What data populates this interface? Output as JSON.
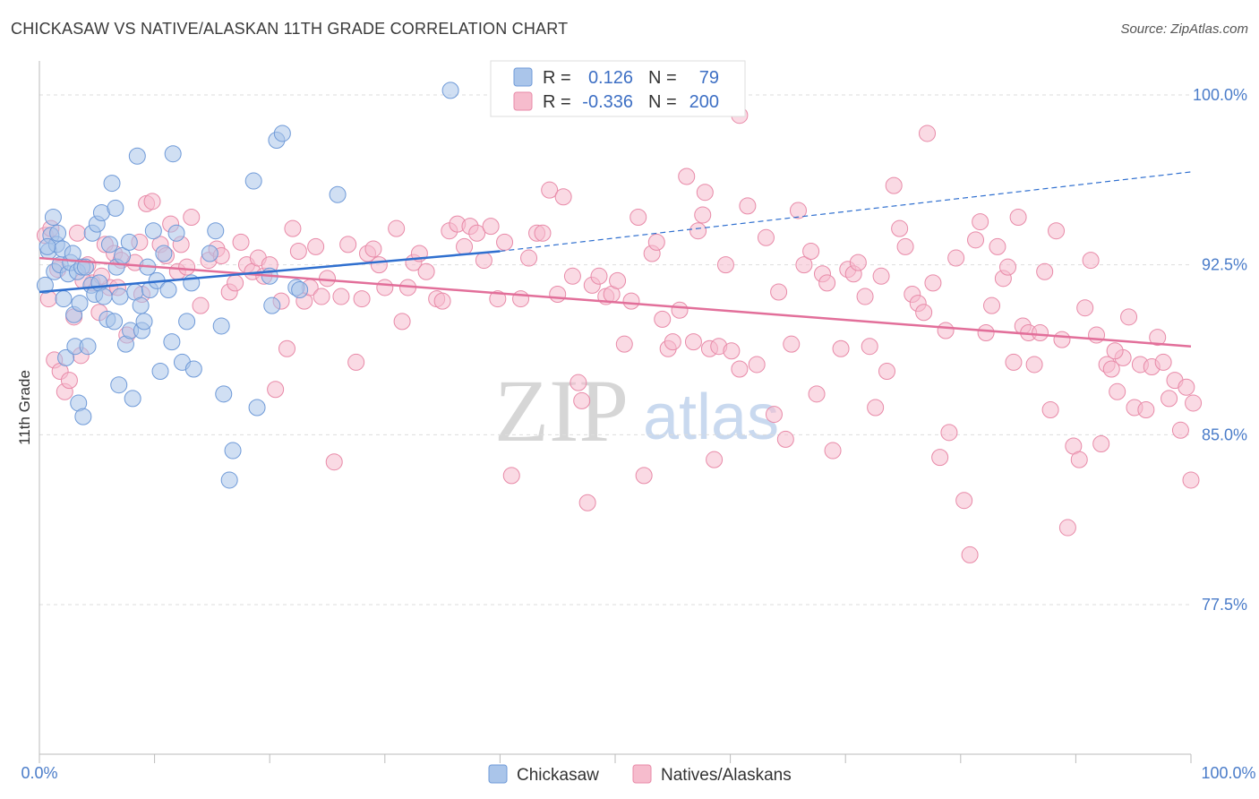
{
  "header": {
    "title": "CHICKASAW VS NATIVE/ALASKAN 11TH GRADE CORRELATION CHART",
    "source": "Source: ZipAtlas.com"
  },
  "watermark": {
    "zip": "ZIP",
    "atlas": "atlas"
  },
  "colors": {
    "blue_fill": "#aac5ea",
    "blue_stroke": "#6f9ad8",
    "blue_line": "#2f6fcf",
    "pink_fill": "#f6bccd",
    "pink_stroke": "#e88aa8",
    "pink_line": "#e26f9a",
    "grid": "#dddddd",
    "tick_text": "#4a7cc9"
  },
  "legend": {
    "r_label": "R =",
    "n_label": "N =",
    "rows": [
      {
        "r": "0.126",
        "n": "79",
        "color": "blue"
      },
      {
        "r": "-0.336",
        "n": "200",
        "color": "pink"
      }
    ]
  },
  "bottom_legend": [
    {
      "label": "Chickasaw",
      "color": "blue"
    },
    {
      "label": "Natives/Alaskans",
      "color": "pink"
    }
  ],
  "chart_data": {
    "type": "scatter",
    "title": "CHICKASAW VS NATIVE/ALASKAN 11TH GRADE CORRELATION CHART",
    "xlabel": "",
    "ylabel": "11th Grade",
    "xlim": [
      0,
      100
    ],
    "ylim": [
      70.9,
      101.5
    ],
    "x_tick_labels": [
      "0.0%",
      "100.0%"
    ],
    "y_ticks": [
      100.0,
      92.5,
      85.0,
      77.5
    ],
    "y_tick_labels": [
      "100.0%",
      "92.5%",
      "85.0%",
      "77.5%"
    ],
    "grid": "horizontal dashed",
    "legend_position": "top-center",
    "series": [
      {
        "name": "Chickasaw",
        "color": "blue",
        "r": 0.126,
        "n": 79,
        "trend": {
          "x0": 0,
          "y0": 91.3,
          "x1": 40,
          "y1": 93.1,
          "dashed_to_x": 100,
          "dashed_to_y": 96.6
        },
        "points": [
          [
            0.5,
            91.6
          ],
          [
            0.8,
            93.1
          ],
          [
            1,
            93.8
          ],
          [
            1.2,
            94.6
          ],
          [
            1.3,
            92.2
          ],
          [
            1.5,
            93.4
          ],
          [
            1.6,
            93.9
          ],
          [
            1.8,
            92.5
          ],
          [
            2,
            93.2
          ],
          [
            2.1,
            91
          ],
          [
            2.3,
            88.4
          ],
          [
            2.5,
            92.1
          ],
          [
            2.7,
            92.6
          ],
          [
            3,
            90.3
          ],
          [
            3.1,
            88.9
          ],
          [
            3.3,
            92.2
          ],
          [
            3.4,
            86.4
          ],
          [
            3.5,
            90.8
          ],
          [
            3.7,
            92.4
          ],
          [
            3.8,
            85.8
          ],
          [
            4,
            92.4
          ],
          [
            4.2,
            88.9
          ],
          [
            4.5,
            91.6
          ],
          [
            4.6,
            93.9
          ],
          [
            4.8,
            91.2
          ],
          [
            5,
            94.3
          ],
          [
            5.2,
            91.7
          ],
          [
            5.4,
            94.8
          ],
          [
            5.6,
            91.1
          ],
          [
            5.9,
            90.1
          ],
          [
            6.1,
            93.4
          ],
          [
            6.3,
            96.1
          ],
          [
            6.5,
            90
          ],
          [
            6.7,
            92.4
          ],
          [
            6.9,
            87.2
          ],
          [
            7,
            91.1
          ],
          [
            7.2,
            92.9
          ],
          [
            7.5,
            89
          ],
          [
            7.8,
            93.5
          ],
          [
            7.9,
            89.6
          ],
          [
            8.1,
            86.6
          ],
          [
            8.3,
            91.3
          ],
          [
            8.5,
            97.3
          ],
          [
            8.8,
            90.7
          ],
          [
            8.9,
            89.6
          ],
          [
            9.1,
            90
          ],
          [
            9.4,
            92.4
          ],
          [
            9.6,
            91.4
          ],
          [
            9.9,
            94
          ],
          [
            10.2,
            91.8
          ],
          [
            10.5,
            87.8
          ],
          [
            10.8,
            93
          ],
          [
            11.2,
            91.4
          ],
          [
            11.5,
            89.1
          ],
          [
            11.6,
            97.4
          ],
          [
            11.9,
            93.9
          ],
          [
            12.4,
            88.2
          ],
          [
            12.8,
            90
          ],
          [
            13.2,
            91.7
          ],
          [
            13.4,
            87.9
          ],
          [
            14.8,
            93
          ],
          [
            15.3,
            94
          ],
          [
            15.8,
            89.8
          ],
          [
            16,
            86.8
          ],
          [
            16.5,
            83
          ],
          [
            16.8,
            84.3
          ],
          [
            18.6,
            96.2
          ],
          [
            18.9,
            86.2
          ],
          [
            20,
            92
          ],
          [
            20.2,
            90.7
          ],
          [
            20.6,
            98
          ],
          [
            21.1,
            98.3
          ],
          [
            22.3,
            91.5
          ],
          [
            22.6,
            91.4
          ],
          [
            25.9,
            95.6
          ],
          [
            35.7,
            100.2
          ],
          [
            0.7,
            93.3
          ],
          [
            2.9,
            93
          ],
          [
            6.6,
            95
          ]
        ]
      },
      {
        "name": "Natives/Alaskans",
        "color": "pink",
        "r": -0.336,
        "n": 200,
        "trend": {
          "x0": 0,
          "y0": 92.8,
          "x1": 100,
          "y1": 88.9
        },
        "points": [
          [
            0.5,
            93.8
          ],
          [
            1,
            94.1
          ],
          [
            1.3,
            88.3
          ],
          [
            1.8,
            87.8
          ],
          [
            2.2,
            86.9
          ],
          [
            2.6,
            87.4
          ],
          [
            3,
            90.2
          ],
          [
            3.3,
            93.9
          ],
          [
            3.6,
            88.5
          ],
          [
            4.2,
            92.5
          ],
          [
            4.6,
            91.7
          ],
          [
            5.2,
            90.4
          ],
          [
            5.7,
            93.4
          ],
          [
            6.1,
            91.5
          ],
          [
            6.5,
            93
          ],
          [
            7.1,
            92.7
          ],
          [
            7.6,
            89.4
          ],
          [
            8.3,
            92.6
          ],
          [
            8.7,
            93.5
          ],
          [
            9.3,
            95.2
          ],
          [
            9.8,
            95.3
          ],
          [
            10.5,
            93.4
          ],
          [
            11,
            92.9
          ],
          [
            11.4,
            94.3
          ],
          [
            12,
            92.2
          ],
          [
            12.3,
            93.4
          ],
          [
            12.8,
            92.4
          ],
          [
            13.2,
            94.6
          ],
          [
            14,
            90.7
          ],
          [
            14.7,
            92.7
          ],
          [
            15.4,
            93.2
          ],
          [
            15.8,
            92.9
          ],
          [
            16.5,
            91.3
          ],
          [
            17,
            91.7
          ],
          [
            17.5,
            93.5
          ],
          [
            18,
            92.5
          ],
          [
            18.5,
            92.2
          ],
          [
            19,
            92.8
          ],
          [
            19.5,
            92
          ],
          [
            20,
            92.5
          ],
          [
            20.5,
            87
          ],
          [
            21,
            90.9
          ],
          [
            21.5,
            88.8
          ],
          [
            22,
            94.1
          ],
          [
            22.5,
            93.1
          ],
          [
            23,
            90.9
          ],
          [
            23.5,
            91.5
          ],
          [
            24,
            93.3
          ],
          [
            24.5,
            91.1
          ],
          [
            25,
            91.9
          ],
          [
            25.6,
            83.8
          ],
          [
            26.2,
            91.1
          ],
          [
            26.8,
            93.4
          ],
          [
            27.5,
            88.2
          ],
          [
            28,
            91
          ],
          [
            28.5,
            93
          ],
          [
            29,
            93.2
          ],
          [
            29.5,
            92.5
          ],
          [
            30,
            91.5
          ],
          [
            31,
            94.1
          ],
          [
            31.5,
            90
          ],
          [
            32,
            91.5
          ],
          [
            32.5,
            92.6
          ],
          [
            33,
            93
          ],
          [
            33.6,
            92.2
          ],
          [
            34.5,
            91
          ],
          [
            35,
            90.9
          ],
          [
            35.6,
            94
          ],
          [
            36.3,
            94.3
          ],
          [
            36.9,
            93.3
          ],
          [
            37.4,
            94.2
          ],
          [
            38,
            93.9
          ],
          [
            38.6,
            92.7
          ],
          [
            39.2,
            94.2
          ],
          [
            39.8,
            91
          ],
          [
            40.4,
            93.5
          ],
          [
            41,
            83.2
          ],
          [
            41.8,
            91
          ],
          [
            42.5,
            92.8
          ],
          [
            43.2,
            93.9
          ],
          [
            43.7,
            93.9
          ],
          [
            44.3,
            95.8
          ],
          [
            45,
            91.2
          ],
          [
            45.5,
            95.5
          ],
          [
            46.3,
            92
          ],
          [
            46.8,
            87.3
          ],
          [
            47.1,
            86.5
          ],
          [
            47.6,
            82
          ],
          [
            48,
            91.6
          ],
          [
            48.6,
            92
          ],
          [
            49.2,
            91.1
          ],
          [
            49.7,
            91.2
          ],
          [
            50.2,
            91.8
          ],
          [
            50.8,
            89
          ],
          [
            51.4,
            90.9
          ],
          [
            52,
            94.6
          ],
          [
            52.5,
            83.2
          ],
          [
            53.2,
            93
          ],
          [
            53.6,
            93.5
          ],
          [
            54.1,
            90.1
          ],
          [
            54.6,
            88.8
          ],
          [
            55,
            89.1
          ],
          [
            55.6,
            90.5
          ],
          [
            56.2,
            96.4
          ],
          [
            56.8,
            89.1
          ],
          [
            57.2,
            94
          ],
          [
            57.6,
            94.7
          ],
          [
            57.8,
            95.7
          ],
          [
            58.2,
            88.8
          ],
          [
            58.6,
            83.9
          ],
          [
            59,
            88.9
          ],
          [
            59.6,
            92.5
          ],
          [
            60.1,
            88.7
          ],
          [
            60.8,
            87.9
          ],
          [
            61.5,
            95.1
          ],
          [
            62.3,
            88.1
          ],
          [
            63.1,
            93.7
          ],
          [
            63.8,
            85.9
          ],
          [
            64.2,
            91.3
          ],
          [
            64.8,
            84.8
          ],
          [
            65.3,
            89
          ],
          [
            65.9,
            94.9
          ],
          [
            66.4,
            92.5
          ],
          [
            67,
            93.1
          ],
          [
            67.5,
            86.8
          ],
          [
            68,
            92.1
          ],
          [
            68.4,
            91.7
          ],
          [
            68.9,
            84.3
          ],
          [
            69.6,
            88.8
          ],
          [
            70.2,
            92.3
          ],
          [
            70.7,
            92.1
          ],
          [
            71.1,
            92.6
          ],
          [
            71.7,
            91.1
          ],
          [
            72.1,
            88.9
          ],
          [
            72.6,
            86.2
          ],
          [
            73.1,
            92
          ],
          [
            73.6,
            87.8
          ],
          [
            74.2,
            96
          ],
          [
            74.7,
            94.1
          ],
          [
            75.2,
            93.3
          ],
          [
            75.8,
            91.2
          ],
          [
            76.3,
            90.8
          ],
          [
            76.8,
            90.4
          ],
          [
            77.1,
            98.3
          ],
          [
            77.6,
            91.7
          ],
          [
            78.2,
            84
          ],
          [
            78.7,
            89.6
          ],
          [
            79,
            85.1
          ],
          [
            79.6,
            92.8
          ],
          [
            80.3,
            82.1
          ],
          [
            80.8,
            79.7
          ],
          [
            81.3,
            93.6
          ],
          [
            81.7,
            94.4
          ],
          [
            82.2,
            89.5
          ],
          [
            82.7,
            90.7
          ],
          [
            83.2,
            93.3
          ],
          [
            83.7,
            91.9
          ],
          [
            84.1,
            92.4
          ],
          [
            84.6,
            88.2
          ],
          [
            85,
            94.6
          ],
          [
            85.4,
            89.8
          ],
          [
            85.9,
            89.5
          ],
          [
            86.4,
            88.1
          ],
          [
            86.9,
            89.5
          ],
          [
            87.3,
            92.2
          ],
          [
            87.8,
            86.1
          ],
          [
            88.3,
            94
          ],
          [
            88.8,
            89.2
          ],
          [
            89.3,
            80.9
          ],
          [
            89.8,
            84.5
          ],
          [
            90.3,
            83.9
          ],
          [
            90.8,
            90.6
          ],
          [
            91.3,
            92.7
          ],
          [
            91.8,
            89.4
          ],
          [
            92.2,
            84.6
          ],
          [
            92.7,
            88.1
          ],
          [
            93.1,
            87.9
          ],
          [
            93.6,
            86.9
          ],
          [
            94.1,
            88.4
          ],
          [
            94.6,
            90.2
          ],
          [
            95.1,
            86.2
          ],
          [
            95.6,
            88.1
          ],
          [
            96.1,
            86.1
          ],
          [
            96.6,
            88
          ],
          [
            97.1,
            89.3
          ],
          [
            97.6,
            88.2
          ],
          [
            98.1,
            86.6
          ],
          [
            98.6,
            87.4
          ],
          [
            99.1,
            85.2
          ],
          [
            99.6,
            87.1
          ],
          [
            100,
            83
          ],
          [
            100.2,
            86.4
          ],
          [
            0.8,
            91
          ],
          [
            1.6,
            92.3
          ],
          [
            3.8,
            91.8
          ],
          [
            5.4,
            92
          ],
          [
            6.8,
            91.5
          ],
          [
            8.9,
            91.2
          ],
          [
            60.8,
            99.1
          ],
          [
            93.4,
            88.7
          ]
        ]
      }
    ]
  }
}
